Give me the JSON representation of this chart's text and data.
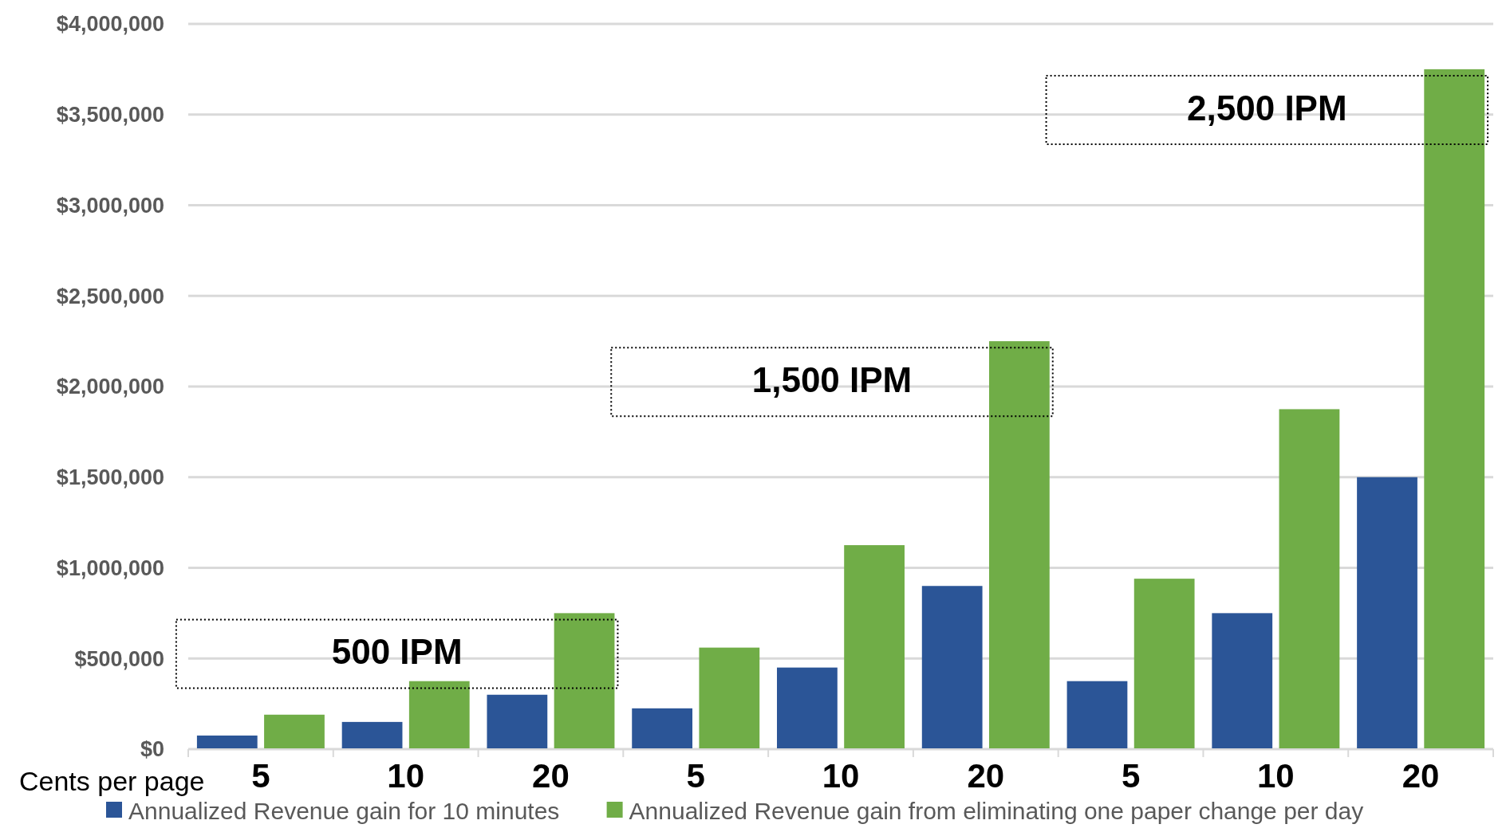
{
  "chart_data": {
    "type": "bar",
    "xlabel": "Cents per page",
    "categories": [
      "5",
      "10",
      "20",
      "5",
      "10",
      "20",
      "5",
      "10",
      "20"
    ],
    "series": [
      {
        "name": "Annualized Revenue gain for 10 minutes",
        "color": "#2b5597",
        "values": [
          75000,
          150000,
          300000,
          225000,
          450000,
          900000,
          375000,
          750000,
          1500000
        ]
      },
      {
        "name": "Annualized Revenue gain from eliminating one paper change per day",
        "color": "#70ad47",
        "values": [
          190000,
          375000,
          750000,
          560000,
          1125000,
          2250000,
          940000,
          1875000,
          3750000
        ]
      }
    ],
    "ylim": [
      0,
      4000000
    ],
    "yticks": [
      {
        "value": 0,
        "label": "$0"
      },
      {
        "value": 500000,
        "label": "$500,000"
      },
      {
        "value": 1000000,
        "label": "$1,000,000"
      },
      {
        "value": 1500000,
        "label": "$1,500,000"
      },
      {
        "value": 2000000,
        "label": "$2,000,000"
      },
      {
        "value": 2500000,
        "label": "$2,500,000"
      },
      {
        "value": 3000000,
        "label": "$3,000,000"
      },
      {
        "value": 3500000,
        "label": "$3,500,000"
      },
      {
        "value": 4000000,
        "label": "$4,000,000"
      }
    ],
    "annotations": [
      "500 IPM",
      "1,500 IPM",
      "2,500 IPM"
    ],
    "grid": "y",
    "legend": "bottom"
  }
}
